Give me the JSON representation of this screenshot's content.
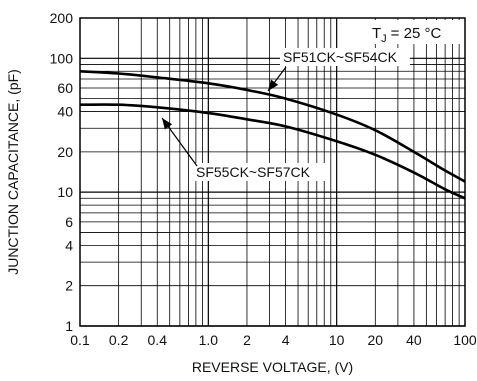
{
  "chart_data": {
    "type": "line",
    "title": "",
    "xlabel": "REVERSE VOLTAGE, (V)",
    "ylabel": "JUNCTION CAPACITANCE, (pF)",
    "xscale": "log",
    "yscale": "log",
    "xlim": [
      0.1,
      100
    ],
    "ylim": [
      1,
      200
    ],
    "grid": true,
    "x_ticks": [
      0.1,
      0.2,
      0.4,
      1.0,
      2,
      4,
      10,
      20,
      40,
      100
    ],
    "x_tick_labels": [
      "0.1",
      "0.2",
      "0.4",
      "1.0",
      "2",
      "4",
      "10",
      "20",
      "40",
      "100"
    ],
    "y_ticks": [
      1,
      2,
      4,
      6,
      10,
      20,
      40,
      60,
      100,
      200
    ],
    "y_tick_labels": [
      "1",
      "2",
      "4",
      "6",
      "10",
      "20",
      "40",
      "60",
      "100",
      "200"
    ],
    "condition_label": "T",
    "condition_subscript": "J",
    "condition_value": "= 25 °C",
    "series": [
      {
        "name": "SF51CK~SF54CK",
        "x": [
          0.1,
          0.2,
          0.4,
          1,
          2,
          4,
          10,
          20,
          40,
          70,
          100
        ],
        "values": [
          80,
          77,
          72,
          65,
          58,
          50,
          38,
          29,
          20,
          14.5,
          12
        ]
      },
      {
        "name": "SF55CK~SF57CK",
        "x": [
          0.1,
          0.2,
          0.4,
          1,
          2,
          4,
          10,
          20,
          40,
          70,
          100
        ],
        "values": [
          45,
          45,
          43,
          39,
          35,
          31,
          24,
          19,
          14,
          10.5,
          9
        ]
      }
    ]
  }
}
